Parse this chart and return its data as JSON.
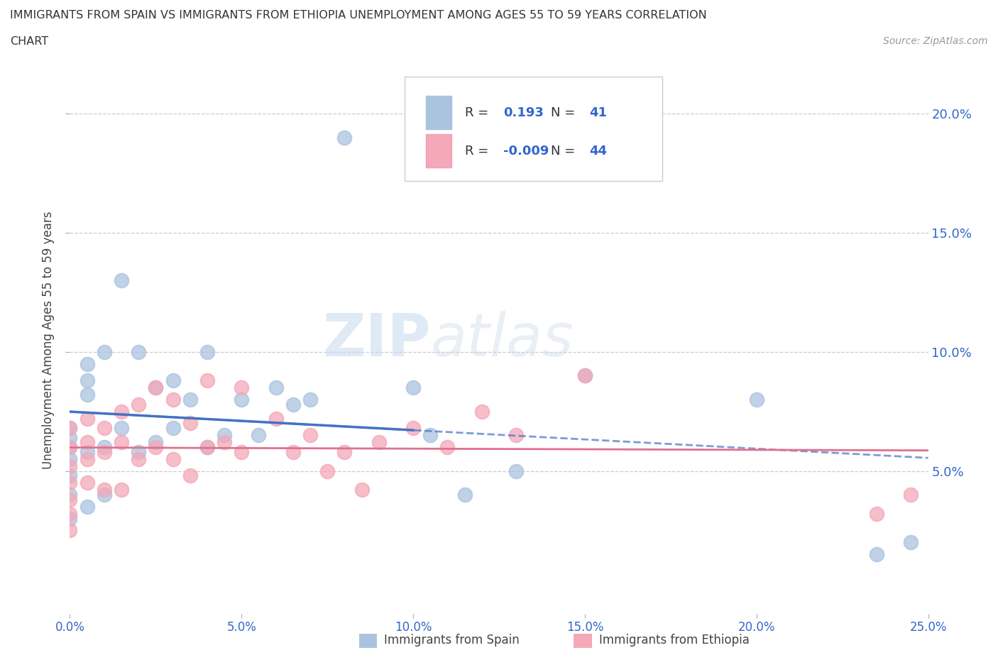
{
  "title_line1": "IMMIGRANTS FROM SPAIN VS IMMIGRANTS FROM ETHIOPIA UNEMPLOYMENT AMONG AGES 55 TO 59 YEARS CORRELATION",
  "title_line2": "CHART",
  "source_text": "Source: ZipAtlas.com",
  "ylabel": "Unemployment Among Ages 55 to 59 years",
  "xlim": [
    0.0,
    0.25
  ],
  "ylim": [
    -0.01,
    0.22
  ],
  "xticks": [
    0.0,
    0.05,
    0.1,
    0.15,
    0.2,
    0.25
  ],
  "xticklabels": [
    "0.0%",
    "5.0%",
    "10.0%",
    "15.0%",
    "20.0%",
    "25.0%"
  ],
  "yticks": [
    0.05,
    0.1,
    0.15,
    0.2
  ],
  "yticklabels": [
    "5.0%",
    "10.0%",
    "15.0%",
    "20.0%"
  ],
  "spain_R": 0.193,
  "spain_N": 41,
  "ethiopia_R": -0.009,
  "ethiopia_N": 44,
  "spain_color": "#aac4e0",
  "ethiopia_color": "#f4a8b8",
  "spain_line_color": "#4472c4",
  "ethiopia_line_color": "#e07090",
  "watermark_zip": "ZIP",
  "watermark_atlas": "atlas",
  "legend_label_spain": "Immigrants from Spain",
  "legend_label_ethiopia": "Immigrants from Ethiopia",
  "background_color": "#ffffff",
  "grid_color": "#cccccc",
  "spain_scatter_x": [
    0.0,
    0.0,
    0.0,
    0.0,
    0.0,
    0.0,
    0.0,
    0.005,
    0.005,
    0.005,
    0.005,
    0.005,
    0.01,
    0.01,
    0.01,
    0.015,
    0.015,
    0.02,
    0.02,
    0.025,
    0.025,
    0.03,
    0.03,
    0.035,
    0.04,
    0.04,
    0.045,
    0.05,
    0.055,
    0.06,
    0.065,
    0.07,
    0.08,
    0.1,
    0.105,
    0.115,
    0.13,
    0.15,
    0.2,
    0.235,
    0.245
  ],
  "spain_scatter_y": [
    0.068,
    0.064,
    0.06,
    0.055,
    0.048,
    0.04,
    0.03,
    0.095,
    0.088,
    0.082,
    0.058,
    0.035,
    0.1,
    0.06,
    0.04,
    0.13,
    0.068,
    0.1,
    0.058,
    0.085,
    0.062,
    0.088,
    0.068,
    0.08,
    0.1,
    0.06,
    0.065,
    0.08,
    0.065,
    0.085,
    0.078,
    0.08,
    0.19,
    0.085,
    0.065,
    0.04,
    0.05,
    0.09,
    0.08,
    0.015,
    0.02
  ],
  "ethiopia_scatter_x": [
    0.0,
    0.0,
    0.0,
    0.0,
    0.0,
    0.0,
    0.0,
    0.005,
    0.005,
    0.005,
    0.005,
    0.01,
    0.01,
    0.01,
    0.015,
    0.015,
    0.015,
    0.02,
    0.02,
    0.025,
    0.025,
    0.03,
    0.03,
    0.035,
    0.035,
    0.04,
    0.04,
    0.045,
    0.05,
    0.05,
    0.06,
    0.065,
    0.07,
    0.075,
    0.08,
    0.085,
    0.09,
    0.1,
    0.11,
    0.12,
    0.13,
    0.15,
    0.235,
    0.245
  ],
  "ethiopia_scatter_y": [
    0.068,
    0.06,
    0.052,
    0.045,
    0.038,
    0.032,
    0.025,
    0.072,
    0.062,
    0.055,
    0.045,
    0.068,
    0.058,
    0.042,
    0.075,
    0.062,
    0.042,
    0.078,
    0.055,
    0.085,
    0.06,
    0.08,
    0.055,
    0.07,
    0.048,
    0.088,
    0.06,
    0.062,
    0.085,
    0.058,
    0.072,
    0.058,
    0.065,
    0.05,
    0.058,
    0.042,
    0.062,
    0.068,
    0.06,
    0.075,
    0.065,
    0.09,
    0.032,
    0.04
  ]
}
